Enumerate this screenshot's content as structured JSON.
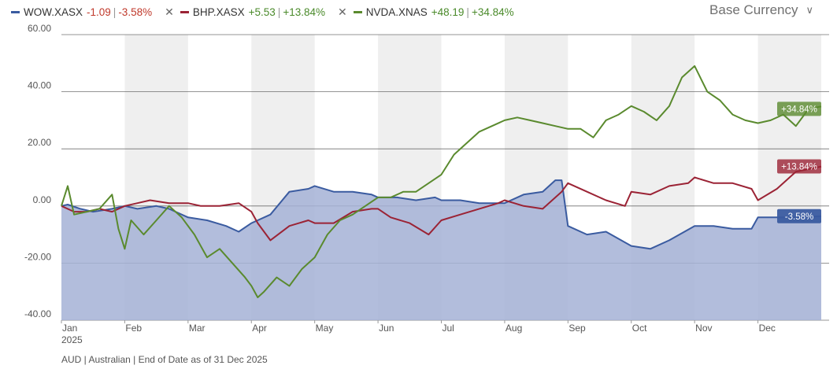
{
  "legend": [
    {
      "symbol": "WOW.XASX",
      "change": "-1.09",
      "change_pct": "-3.58%",
      "color": "#3a5ba0",
      "change_color": "#c0392b"
    },
    {
      "symbol": "BHP.XASX",
      "change": "+5.53",
      "change_pct": "+13.84%",
      "color": "#9b2335",
      "change_color": "#4a8a2a"
    },
    {
      "symbol": "NVDA.XNAS",
      "change": "+48.19",
      "change_pct": "+34.84%",
      "color": "#5a8a2e",
      "change_color": "#4a8a2a"
    }
  ],
  "icons": {
    "close": "close-icon",
    "dropdown": "chevron-down-icon"
  },
  "currency_label": "Base Currency",
  "year_label": "2025",
  "footer": "AUD | Australian | End of Date as of 31 Dec 2025",
  "chart_data": {
    "type": "line",
    "ylim": [
      -40,
      60
    ],
    "xlim": [
      0,
      12
    ],
    "yticks": [
      60,
      40,
      20,
      0,
      -20,
      -40
    ],
    "ytick_labels": [
      "60.00",
      "40.00",
      "20.00",
      "0.00",
      "-20.00",
      "-40.00"
    ],
    "categories": [
      "Jan",
      "Feb",
      "Mar",
      "Apr",
      "May",
      "Jun",
      "Jul",
      "Aug",
      "Sep",
      "Oct",
      "Nov",
      "Dec"
    ],
    "grid": true,
    "alternating_month_shading": true,
    "series": [
      {
        "name": "WOW.XASX",
        "color": "#3a5ba0",
        "fill": "#a4b2d6",
        "end_label": "-3.58%",
        "x": [
          0,
          0.1,
          0.3,
          0.5,
          0.8,
          1.0,
          1.2,
          1.5,
          1.7,
          2.0,
          2.3,
          2.6,
          2.8,
          3.0,
          3.3,
          3.6,
          3.9,
          4.0,
          4.3,
          4.6,
          4.9,
          5.0,
          5.3,
          5.6,
          5.9,
          6.0,
          6.3,
          6.6,
          7.0,
          7.3,
          7.6,
          7.8,
          7.9,
          8.0,
          8.3,
          8.6,
          9.0,
          9.3,
          9.6,
          10.0,
          10.3,
          10.6,
          10.9,
          11.0,
          11.3,
          11.6,
          12.0
        ],
        "y": [
          0,
          0.5,
          -1,
          -2,
          -1,
          0,
          -1,
          0,
          -1,
          -4,
          -5,
          -7,
          -9,
          -6,
          -3,
          5,
          6,
          7,
          5,
          5,
          4,
          3,
          3,
          2,
          3,
          2,
          2,
          1,
          1,
          4,
          5,
          9,
          9,
          -7,
          -10,
          -9,
          -14,
          -15,
          -12,
          -7,
          -7,
          -8,
          -8,
          -4,
          -4,
          -4,
          -3.58
        ]
      },
      {
        "name": "BHP.XASX",
        "color": "#9b2335",
        "end_label": "+13.84%",
        "x": [
          0,
          0.2,
          0.4,
          0.6,
          0.8,
          1.0,
          1.2,
          1.4,
          1.7,
          2.0,
          2.2,
          2.5,
          2.8,
          3.0,
          3.1,
          3.3,
          3.6,
          3.9,
          4.0,
          4.3,
          4.6,
          4.9,
          5.0,
          5.2,
          5.5,
          5.8,
          6.0,
          6.3,
          6.6,
          6.9,
          7.0,
          7.3,
          7.6,
          7.9,
          8.0,
          8.3,
          8.6,
          8.9,
          9.0,
          9.3,
          9.6,
          9.9,
          10.0,
          10.3,
          10.6,
          10.9,
          11.0,
          11.3,
          11.6,
          12.0
        ],
        "y": [
          0,
          -2,
          -2,
          -1,
          -2,
          0,
          1,
          2,
          1,
          1,
          0,
          0,
          1,
          -2,
          -6,
          -12,
          -7,
          -5,
          -6,
          -6,
          -2,
          -1,
          -1,
          -4,
          -6,
          -10,
          -5,
          -3,
          -1,
          1,
          2,
          0,
          -1,
          5,
          8,
          5,
          2,
          0,
          5,
          4,
          7,
          8,
          10,
          8,
          8,
          6,
          2,
          6,
          12,
          13.84
        ]
      },
      {
        "name": "NVDA.XNAS",
        "color": "#5a8a2e",
        "end_label": "+34.84%",
        "x": [
          0,
          0.1,
          0.2,
          0.4,
          0.6,
          0.8,
          0.9,
          1.0,
          1.1,
          1.3,
          1.5,
          1.7,
          1.9,
          2.1,
          2.3,
          2.5,
          2.7,
          2.9,
          3.0,
          3.1,
          3.2,
          3.4,
          3.6,
          3.8,
          4.0,
          4.2,
          4.4,
          4.6,
          4.8,
          5.0,
          5.2,
          5.4,
          5.6,
          5.8,
          6.0,
          6.2,
          6.4,
          6.6,
          6.8,
          7.0,
          7.2,
          7.4,
          7.6,
          7.8,
          8.0,
          8.2,
          8.4,
          8.6,
          8.8,
          9.0,
          9.2,
          9.4,
          9.6,
          9.8,
          10.0,
          10.2,
          10.4,
          10.6,
          10.8,
          11.0,
          11.2,
          11.4,
          11.6,
          11.8,
          12.0
        ],
        "y": [
          0,
          7,
          -3,
          -2,
          -1,
          4,
          -8,
          -15,
          -5,
          -10,
          -5,
          0,
          -4,
          -10,
          -18,
          -15,
          -20,
          -25,
          -28,
          -32,
          -30,
          -25,
          -28,
          -22,
          -18,
          -10,
          -5,
          -3,
          0,
          3,
          3,
          5,
          5,
          8,
          11,
          18,
          22,
          26,
          28,
          30,
          31,
          30,
          29,
          28,
          27,
          27,
          24,
          30,
          32,
          35,
          33,
          30,
          35,
          45,
          49,
          40,
          37,
          32,
          30,
          29,
          30,
          32,
          28,
          34,
          34.84
        ]
      }
    ]
  }
}
